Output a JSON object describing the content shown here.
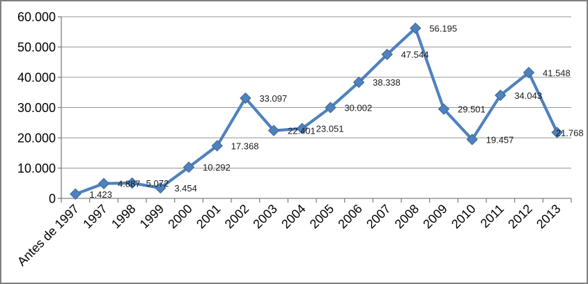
{
  "window": {
    "background": "#FFFFFF",
    "border_color": "#808080"
  },
  "chart_data": {
    "type": "line",
    "title": "",
    "legend": "none",
    "grid": "horizontal",
    "marker_shape": "diamond",
    "x_tick_rotation_deg": 45,
    "categories": [
      "Antes de 1997",
      "1997",
      "1998",
      "1999",
      "2000",
      "2001",
      "2002",
      "2003",
      "2004",
      "2005",
      "2006",
      "2007",
      "2008",
      "2009",
      "2010",
      "2011",
      "2012",
      "2013"
    ],
    "values": [
      1423,
      4887,
      5072,
      3454,
      10292,
      17368,
      33097,
      22401,
      23051,
      30002,
      38338,
      47544,
      56195,
      29501,
      19457,
      34043,
      41548,
      21768
    ],
    "data_labels": [
      "1.423",
      "4.887",
      "5.072",
      "3.454",
      "10.292",
      "17.368",
      "33.097",
      "22.401",
      "23.051",
      "30.002",
      "38.338",
      "47.544",
      "56.195",
      "29.501",
      "19.457",
      "34.043",
      "41.548",
      "21.768"
    ],
    "xlabel": "",
    "ylabel": "",
    "ylim": [
      0,
      60000
    ],
    "y_axis": {
      "min": 0,
      "max": 60000,
      "tick_interval": 10000,
      "tick_values": [
        0,
        10000,
        20000,
        30000,
        40000,
        50000,
        60000
      ],
      "tick_labels": [
        "0",
        "10.000",
        "20.000",
        "30.000",
        "40.000",
        "50.000",
        "60.000"
      ]
    },
    "colors": {
      "series": "#4F81BD",
      "marker_fill": "#4F81BD",
      "marker_stroke": "#3A6797",
      "gridline": "#969696",
      "axis": "#808080",
      "tick_label": "#000000",
      "data_label": "#1A1A1A"
    }
  }
}
